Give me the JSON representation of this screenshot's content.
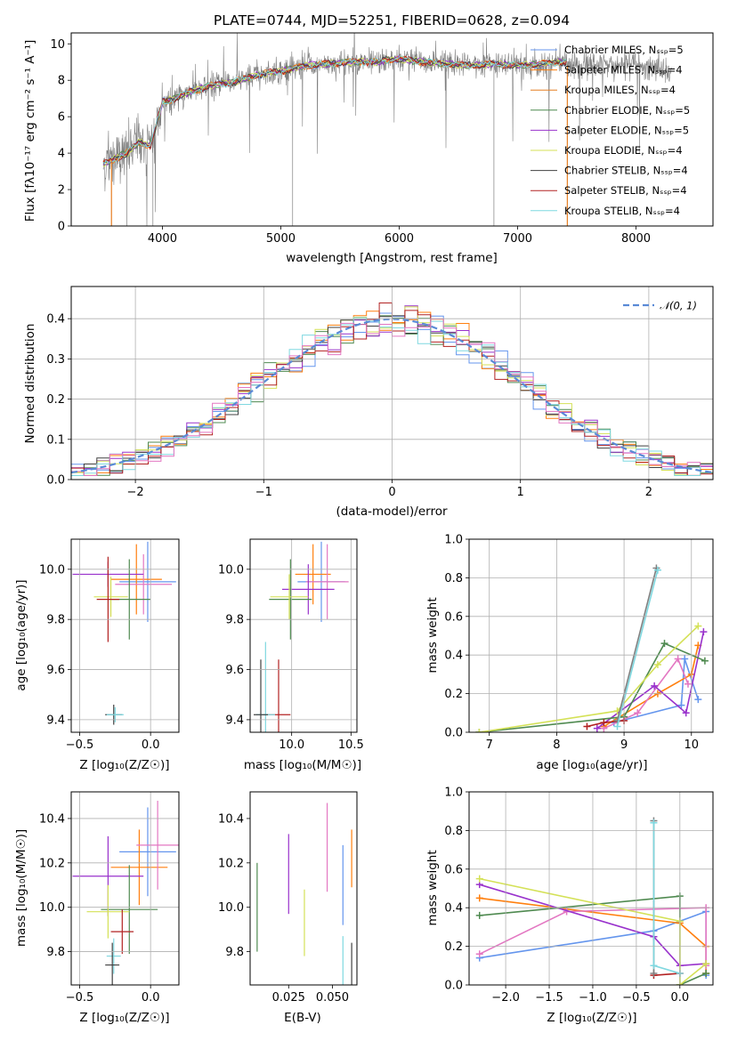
{
  "chart_data": [
    {
      "id": "spectrum",
      "type": "line",
      "title": "PLATE=0744, MJD=52251, FIBERID=0628, z=0.094",
      "xlabel": "wavelength [Angstrom, rest frame]",
      "ylabel": "Flux [fλ10⁻¹⁷ erg cm⁻² s⁻¹ A⁻¹]",
      "xlim": [
        3230,
        8650
      ],
      "ylim": [
        0,
        10.6
      ],
      "xticks": [
        4000,
        5000,
        6000,
        7000,
        8000
      ],
      "yticks": [
        0,
        2,
        4,
        6,
        8,
        10
      ],
      "grid": false,
      "legend_position": "right",
      "data_color": "#808080",
      "continuum": {
        "x": [
          3500,
          3600,
          3700,
          3800,
          3900,
          4000,
          4100,
          4200,
          4400,
          4600,
          4800,
          5000,
          5200,
          5400,
          5600,
          5800,
          6000,
          6200,
          6400,
          6600,
          6800,
          7000,
          7200,
          7400,
          7600,
          7800,
          8000,
          8200,
          8300
        ],
        "y": [
          3.4,
          3.7,
          4.0,
          4.6,
          4.4,
          6.8,
          7.0,
          7.3,
          7.7,
          7.9,
          8.3,
          8.5,
          8.8,
          8.9,
          9.0,
          9.0,
          9.2,
          9.0,
          8.9,
          8.8,
          8.9,
          8.8,
          8.9,
          9.0,
          8.8,
          8.8,
          8.9,
          8.6,
          8.5
        ]
      },
      "series": [
        {
          "name": "Chabrier MILES, N_SSP=5",
          "color": "#6495ed"
        },
        {
          "name": "Salpeter MILES, N_SSP=4",
          "color": "#ff7f0e"
        },
        {
          "name": "Kroupa MILES, N_SSP=4",
          "color": "#e67e22"
        },
        {
          "name": "Chabrier ELODIE, N_SSP=5",
          "color": "#4f8a50"
        },
        {
          "name": "Salpeter ELODIE, N_SSP=5",
          "color": "#9932cc"
        },
        {
          "name": "Kroupa ELODIE, N_SSP=4",
          "color": "#d4e157"
        },
        {
          "name": "Chabrier STELIB, N_SSP=4",
          "color": "#404040"
        },
        {
          "name": "Salpeter STELIB, N_SSP=4",
          "color": "#b22222"
        },
        {
          "name": "Kroupa STELIB, N_SSP=4",
          "color": "#7fd8e0"
        }
      ]
    },
    {
      "id": "residuals",
      "type": "line",
      "xlabel": "(data-model)/error",
      "ylabel": "Normed distribution",
      "xlim": [
        -2.5,
        2.5
      ],
      "ylim": [
        0,
        0.48
      ],
      "xticks": [
        -2,
        -1,
        0,
        1,
        2
      ],
      "yticks": [
        0.0,
        0.1,
        0.2,
        0.3,
        0.4
      ],
      "grid": true,
      "legend_position": "top-right",
      "legend": "𝒩(0, 1)",
      "gaussian_color": "#5a8ad6",
      "series_colors": [
        "#6495ed",
        "#ff7f0e",
        "#4f8a50",
        "#9932cc",
        "#d4e157",
        "#404040",
        "#b22222",
        "#7fd8e0",
        "#e377c2"
      ]
    },
    {
      "id": "age-vs-Z",
      "type": "scatter",
      "xlabel": "Z [log₁₀(Z/Z☉)]",
      "ylabel": "age  [log₁₀(age/yr)]",
      "xlim": [
        -0.56,
        0.2
      ],
      "ylim": [
        9.35,
        10.12
      ],
      "xticks": [
        -0.5,
        0.0
      ],
      "yticks": [
        9.4,
        9.6,
        9.8,
        10.0
      ],
      "grid": true,
      "points": [
        {
          "x": -0.02,
          "y": 9.95,
          "xerr": 0.2,
          "yerr": 0.16,
          "color": "#6495ed"
        },
        {
          "x": -0.1,
          "y": 9.96,
          "xerr": 0.18,
          "yerr": 0.14,
          "color": "#ff7f0e"
        },
        {
          "x": -0.05,
          "y": 9.94,
          "xerr": 0.2,
          "yerr": 0.12,
          "color": "#e377c2"
        },
        {
          "x": -0.3,
          "y": 9.98,
          "xerr": 0.25,
          "yerr": 0.05,
          "color": "#9932cc"
        },
        {
          "x": -0.15,
          "y": 9.88,
          "xerr": 0.15,
          "yerr": 0.16,
          "color": "#4f8a50"
        },
        {
          "x": -0.28,
          "y": 9.89,
          "xerr": 0.12,
          "yerr": 0.08,
          "color": "#d4e157"
        },
        {
          "x": -0.3,
          "y": 9.88,
          "xerr": 0.08,
          "yerr": 0.17,
          "color": "#b22222"
        },
        {
          "x": -0.26,
          "y": 9.42,
          "xerr": 0.06,
          "yerr": 0.04,
          "color": "#404040"
        },
        {
          "x": -0.25,
          "y": 9.42,
          "xerr": 0.06,
          "yerr": 0.03,
          "color": "#7fd8e0"
        }
      ]
    },
    {
      "id": "age-vs-mass",
      "type": "scatter",
      "xlabel": "mass [log₁₀(M/M☉)]",
      "ylabel": "",
      "xlim": [
        9.65,
        10.55
      ],
      "ylim": [
        9.35,
        10.12
      ],
      "xticks": [
        9.5,
        10.0,
        10.5
      ],
      "yticks": [
        9.4,
        9.6,
        9.8,
        10.0
      ],
      "grid": true,
      "points": [
        {
          "x": 10.25,
          "y": 9.95,
          "xerr": 0.2,
          "yerr": 0.16,
          "color": "#6495ed"
        },
        {
          "x": 10.18,
          "y": 9.98,
          "xerr": 0.15,
          "yerr": 0.12,
          "color": "#ff7f0e"
        },
        {
          "x": 10.3,
          "y": 9.95,
          "xerr": 0.18,
          "yerr": 0.15,
          "color": "#e377c2"
        },
        {
          "x": 10.14,
          "y": 9.92,
          "xerr": 0.22,
          "yerr": 0.1,
          "color": "#9932cc"
        },
        {
          "x": 9.99,
          "y": 9.88,
          "xerr": 0.18,
          "yerr": 0.16,
          "color": "#4f8a50"
        },
        {
          "x": 9.98,
          "y": 9.89,
          "xerr": 0.16,
          "yerr": 0.09,
          "color": "#d4e157"
        },
        {
          "x": 9.89,
          "y": 9.42,
          "xerr": 0.1,
          "yerr": 0.22,
          "color": "#b22222"
        },
        {
          "x": 9.78,
          "y": 9.42,
          "xerr": 0.08,
          "yerr": 0.29,
          "color": "#7fd8e0"
        },
        {
          "x": 9.74,
          "y": 9.42,
          "xerr": 0.06,
          "yerr": 0.22,
          "color": "#404040"
        }
      ]
    },
    {
      "id": "weight-vs-age",
      "type": "line",
      "xlabel": "age  [log₁₀(age/yr)]",
      "ylabel": "mass weight",
      "xlim": [
        6.7,
        10.32
      ],
      "ylim": [
        0,
        1.0
      ],
      "xticks": [
        7,
        8,
        9,
        10
      ],
      "yticks": [
        0.0,
        0.2,
        0.4,
        0.6,
        0.8,
        1.0
      ],
      "grid": true,
      "series": [
        {
          "color": "#6495ed",
          "x": [
            8.85,
            9.85,
            9.9,
            10.1
          ],
          "y": [
            0.05,
            0.14,
            0.38,
            0.17
          ]
        },
        {
          "color": "#ff7f0e",
          "x": [
            8.7,
            9.5,
            10.0,
            10.1
          ],
          "y": [
            0.03,
            0.2,
            0.3,
            0.45
          ]
        },
        {
          "color": "#e377c2",
          "x": [
            8.7,
            9.2,
            9.8,
            9.95
          ],
          "y": [
            0.02,
            0.1,
            0.38,
            0.25
          ]
        },
        {
          "color": "#9932cc",
          "x": [
            8.6,
            9.45,
            9.92,
            10.18
          ],
          "y": [
            0.02,
            0.24,
            0.1,
            0.52
          ]
        },
        {
          "color": "#4f8a50",
          "x": [
            6.85,
            9.0,
            9.6,
            10.2
          ],
          "y": [
            0.0,
            0.08,
            0.46,
            0.37
          ]
        },
        {
          "color": "#d4e157",
          "x": [
            6.85,
            8.9,
            9.5,
            10.1
          ],
          "y": [
            0.0,
            0.11,
            0.35,
            0.55
          ]
        },
        {
          "color": "#b22222",
          "x": [
            8.45,
            8.7,
            9.0
          ],
          "y": [
            0.03,
            0.05,
            0.06
          ]
        },
        {
          "color": "#808080",
          "x": [
            8.9,
            9.48
          ],
          "y": [
            0.06,
            0.85
          ]
        },
        {
          "color": "#7fd8e0",
          "x": [
            8.9,
            9.5
          ],
          "y": [
            0.03,
            0.84
          ]
        }
      ]
    },
    {
      "id": "mass-vs-Z",
      "type": "scatter",
      "xlabel": "Z [log₁₀(Z/Z☉)]",
      "ylabel": "mass [log₁₀(M/M☉)]",
      "xlim": [
        -0.56,
        0.2
      ],
      "ylim": [
        9.65,
        10.52
      ],
      "xticks": [
        -0.5,
        0.0
      ],
      "yticks": [
        9.8,
        10.0,
        10.2,
        10.4
      ],
      "grid": true,
      "points": [
        {
          "x": -0.02,
          "y": 10.25,
          "xerr": 0.2,
          "yerr": 0.2,
          "color": "#6495ed"
        },
        {
          "x": -0.08,
          "y": 10.18,
          "xerr": 0.2,
          "yerr": 0.17,
          "color": "#ff7f0e"
        },
        {
          "x": 0.05,
          "y": 10.28,
          "xerr": 0.15,
          "yerr": 0.2,
          "color": "#e377c2"
        },
        {
          "x": -0.3,
          "y": 10.14,
          "xerr": 0.25,
          "yerr": 0.18,
          "color": "#9932cc"
        },
        {
          "x": -0.15,
          "y": 9.99,
          "xerr": 0.2,
          "yerr": 0.2,
          "color": "#4f8a50"
        },
        {
          "x": -0.3,
          "y": 9.98,
          "xerr": 0.15,
          "yerr": 0.12,
          "color": "#d4e157"
        },
        {
          "x": -0.2,
          "y": 9.89,
          "xerr": 0.08,
          "yerr": 0.1,
          "color": "#b22222"
        },
        {
          "x": -0.26,
          "y": 9.78,
          "xerr": 0.05,
          "yerr": 0.08,
          "color": "#7fd8e0"
        },
        {
          "x": -0.27,
          "y": 9.74,
          "xerr": 0.05,
          "yerr": 0.1,
          "color": "#404040"
        }
      ]
    },
    {
      "id": "mass-vs-ebv",
      "type": "scatter",
      "xlabel": "E(B-V)",
      "ylabel": "",
      "xlim": [
        0.003,
        0.064
      ],
      "ylim": [
        9.65,
        10.52
      ],
      "xticks": [
        0.025,
        0.05
      ],
      "yticks": [
        9.8,
        10.0,
        10.2,
        10.4
      ],
      "grid": false,
      "points": [
        {
          "x": 0.056,
          "y": 10.1,
          "yerr": 0.18,
          "color": "#6495ed"
        },
        {
          "x": 0.061,
          "y": 10.22,
          "yerr": 0.13,
          "color": "#ff7f0e"
        },
        {
          "x": 0.047,
          "y": 10.27,
          "yerr": 0.2,
          "color": "#e377c2"
        },
        {
          "x": 0.025,
          "y": 10.15,
          "yerr": 0.18,
          "color": "#9932cc"
        },
        {
          "x": 0.007,
          "y": 10.0,
          "yerr": 0.2,
          "color": "#4f8a50"
        },
        {
          "x": 0.034,
          "y": 9.93,
          "yerr": 0.15,
          "color": "#d4e157"
        },
        {
          "x": 0.056,
          "y": 9.73,
          "yerr": 0.14,
          "color": "#7fd8e0"
        },
        {
          "x": 0.061,
          "y": 9.74,
          "yerr": 0.1,
          "color": "#404040"
        }
      ]
    },
    {
      "id": "weight-vs-Z",
      "type": "line",
      "xlabel": "Z [log₁₀(Z/Z☉)]",
      "ylabel": "mass weight",
      "xlim": [
        -2.42,
        0.38
      ],
      "ylim": [
        0,
        1.0
      ],
      "xticks": [
        -2.0,
        -1.5,
        -1.0,
        -0.5,
        0.0
      ],
      "yticks": [
        0.0,
        0.2,
        0.4,
        0.6,
        0.8,
        1.0
      ],
      "grid": true,
      "series": [
        {
          "color": "#6495ed",
          "x": [
            -2.3,
            -0.3,
            0.3,
            0.3
          ],
          "y": [
            0.14,
            0.28,
            0.38,
            0.05
          ]
        },
        {
          "color": "#ff7f0e",
          "x": [
            -2.3,
            0.0,
            0.3,
            0.3
          ],
          "y": [
            0.45,
            0.32,
            0.2,
            0.06
          ]
        },
        {
          "color": "#e377c2",
          "x": [
            -2.3,
            -1.3,
            0.3,
            0.3
          ],
          "y": [
            0.16,
            0.38,
            0.4,
            0.1
          ]
        },
        {
          "color": "#9932cc",
          "x": [
            -2.3,
            -0.3,
            0.0,
            0.3
          ],
          "y": [
            0.52,
            0.25,
            0.1,
            0.11
          ]
        },
        {
          "color": "#4f8a50",
          "x": [
            -2.3,
            0.0,
            0.0,
            0.3
          ],
          "y": [
            0.36,
            0.46,
            0.0,
            0.06
          ]
        },
        {
          "color": "#d4e157",
          "x": [
            -2.3,
            0.0,
            0.0,
            0.3
          ],
          "y": [
            0.55,
            0.33,
            0.0,
            0.11
          ]
        },
        {
          "color": "#b22222",
          "x": [
            -0.3,
            0.0
          ],
          "y": [
            0.05,
            0.06
          ]
        },
        {
          "color": "#808080",
          "x": [
            -0.3,
            -0.3
          ],
          "y": [
            0.85,
            0.06
          ]
        },
        {
          "color": "#7fd8e0",
          "x": [
            -0.3,
            -0.3,
            0.0
          ],
          "y": [
            0.84,
            0.1,
            0.06
          ]
        }
      ]
    }
  ]
}
